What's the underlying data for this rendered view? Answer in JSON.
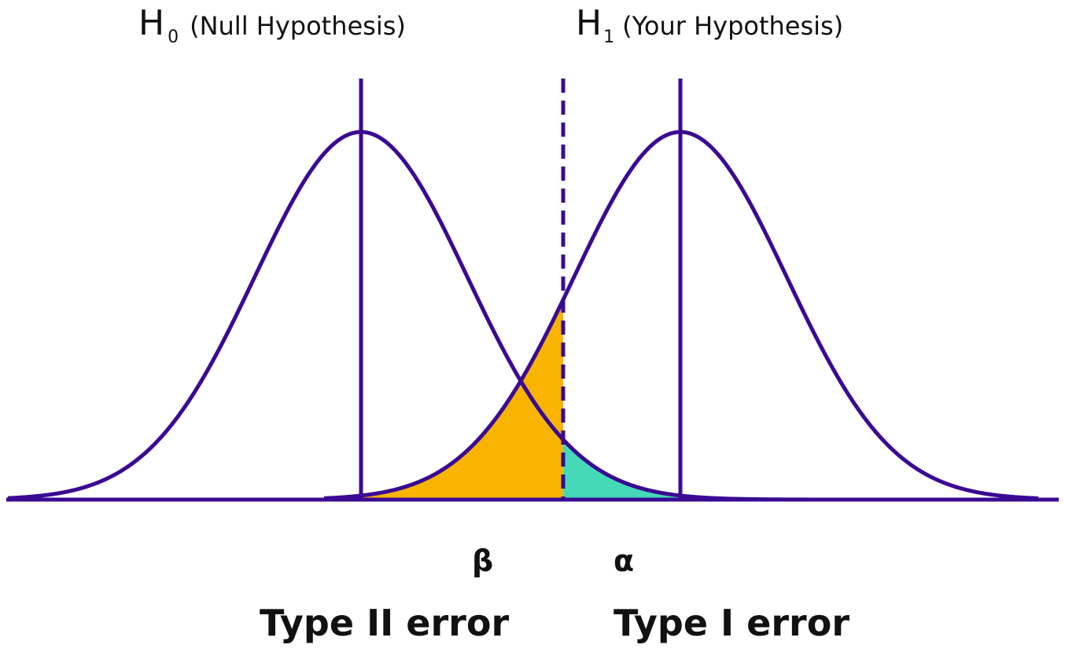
{
  "colors": {
    "stroke": "#3a0a94",
    "beta_fill": "#f8b400",
    "alpha_fill": "#46d9b8"
  },
  "h0": {
    "letter": "H",
    "subscript": "0",
    "description": "(Null Hypothesis)"
  },
  "h1": {
    "letter": "H",
    "subscript": "1",
    "description": "(Your Hypothesis)"
  },
  "beta": {
    "symbol": "β",
    "label": "Type II error"
  },
  "alpha": {
    "symbol": "α",
    "label": "Type I error"
  }
}
